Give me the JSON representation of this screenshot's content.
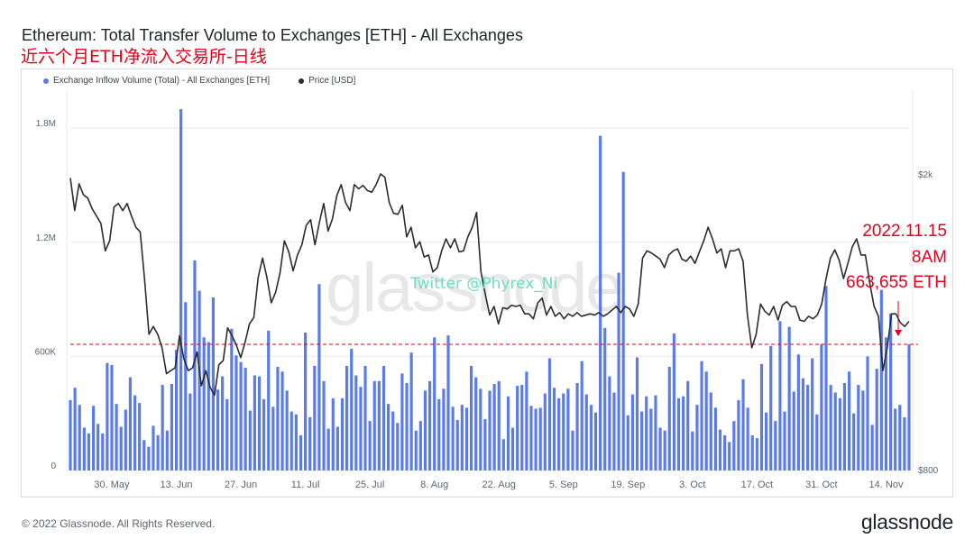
{
  "header": {
    "title": "Ethereum: Total Transfer Volume to Exchanges [ETH] - All Exchanges",
    "subtitle": "近六个月ETH净流入交易所-日线"
  },
  "legend": {
    "inflow": "Exchange Inflow Volume (Total) - All Exchanges [ETH]",
    "price": "Price [USD]"
  },
  "annotation": {
    "date": "2022.11.15",
    "time": "8AM",
    "value": "663,655 ETH"
  },
  "watermark": "glassnode",
  "twitter": "Twitter @Phyrex_Ni",
  "footer": {
    "copyright": "© 2022 Glassnode. All Rights Reserved.",
    "brand": "glassnode"
  },
  "colors": {
    "bars": "#5b7be8",
    "price_line": "#2a2c30",
    "reference_line": "#e3001b",
    "annotation": "#e3001b"
  },
  "chart_data": {
    "type": "bar",
    "title": "Ethereum: Total Transfer Volume to Exchanges [ETH] - All Exchanges",
    "x_ticks": [
      "30. May",
      "13. Jun",
      "27. Jun",
      "11. Jul",
      "25. Jul",
      "8. Aug",
      "22. Aug",
      "5. Sep",
      "19. Sep",
      "3. Oct",
      "17. Oct",
      "31. Oct",
      "14. Nov"
    ],
    "y_left": {
      "ticks": [
        "0",
        "600K",
        "1.2M",
        "1.8M"
      ],
      "tick_values": [
        0,
        600000,
        1200000,
        1800000
      ],
      "range": [
        0,
        2000000
      ]
    },
    "y_right": {
      "ticks": [
        "$800",
        "$2k"
      ],
      "tick_values": [
        800,
        2000
      ],
      "scale": "log",
      "range": [
        800,
        2600
      ]
    },
    "reference_value": 663655,
    "series": [
      {
        "name": "Exchange Inflow Volume (Total) - All Exchanges [ETH]",
        "type": "bar",
        "values": [
          370000,
          435000,
          345000,
          225000,
          195000,
          340000,
          245000,
          195000,
          565000,
          555000,
          350000,
          230000,
          320000,
          490000,
          395000,
          355000,
          160000,
          125000,
          235000,
          185000,
          450000,
          210000,
          455000,
          635000,
          1900000,
          885000,
          405000,
          1105000,
          945000,
          700000,
          675000,
          910000,
          425000,
          495000,
          375000,
          745000,
          605000,
          570000,
          540000,
          315000,
          500000,
          495000,
          375000,
          735000,
          335000,
          545000,
          520000,
          420000,
          310000,
          295000,
          185000,
          725000,
          280000,
          550000,
          980000,
          470000,
          220000,
          380000,
          230000,
          380000,
          550000,
          640000,
          500000,
          440000,
          550000,
          260000,
          470000,
          470000,
          550000,
          350000,
          310000,
          250000,
          510000,
          460000,
          620000,
          210000,
          260000,
          420000,
          470000,
          700000,
          375000,
          430000,
          710000,
          335000,
          265000,
          345000,
          330000,
          550000,
          490000,
          430000,
          270000,
          420000,
          455000,
          470000,
          165000,
          390000,
          225000,
          445000,
          450000,
          520000,
          340000,
          325000,
          330000,
          405000,
          590000,
          435000,
          380000,
          405000,
          430000,
          210000,
          460000,
          575000,
          400000,
          345000,
          305000,
          1760000,
          750000,
          495000,
          410000,
          1040000,
          1570000,
          290000,
          400000,
          595000,
          310000,
          390000,
          325000,
          395000,
          225000,
          210000,
          545000,
          720000,
          380000,
          390000,
          470000,
          205000,
          345000,
          575000,
          520000,
          410000,
          330000,
          215000,
          185000,
          150000,
          260000,
          370000,
          480000,
          330000,
          185000,
          170000,
          560000,
          305000,
          655000,
          260000,
          785000,
          310000,
          755000,
          415000,
          610000,
          485000,
          450000,
          590000,
          295000,
          665000,
          970000,
          450000,
          410000,
          380000,
          460000,
          520000,
          300000,
          450000,
          420000,
          600000,
          240000,
          535000,
          950000,
          700000,
          825000,
          325000,
          345000,
          280000,
          663655
        ]
      },
      {
        "name": "Price [USD]",
        "type": "line",
        "values": [
          1980,
          1790,
          1945,
          1880,
          1860,
          1800,
          1760,
          1720,
          1580,
          1630,
          1810,
          1830,
          1790,
          1830,
          1760,
          1700,
          1675,
          1445,
          1220,
          1250,
          1220,
          1170,
          1080,
          1090,
          1100,
          1215,
          1130,
          1090,
          1100,
          1155,
          1040,
          1090,
          1035,
          1010,
          1110,
          1125,
          1245,
          1215,
          1180,
          1135,
          1190,
          1260,
          1285,
          1455,
          1545,
          1455,
          1345,
          1390,
          1475,
          1630,
          1575,
          1485,
          1560,
          1610,
          1710,
          1740,
          1610,
          1725,
          1830,
          1680,
          1745,
          1875,
          1940,
          1835,
          1790,
          1940,
          1915,
          1935,
          1905,
          1895,
          1940,
          2005,
          1985,
          1835,
          1775,
          1770,
          1820,
          1650,
          1700,
          1595,
          1625,
          1550,
          1560,
          1480,
          1500,
          1580,
          1640,
          1595,
          1640,
          1575,
          1580,
          1650,
          1700,
          1780,
          1480,
          1380,
          1295,
          1330,
          1260,
          1325,
          1320,
          1335,
          1330,
          1335,
          1300,
          1300,
          1280,
          1345,
          1365,
          1295,
          1330,
          1290,
          1305,
          1280,
          1300,
          1290,
          1305,
          1290,
          1295,
          1300,
          1295,
          1305,
          1290,
          1300,
          1315,
          1330,
          1305,
          1330,
          1320,
          1290,
          1340,
          1545,
          1580,
          1570,
          1555,
          1540,
          1500,
          1560,
          1580,
          1590,
          1540,
          1530,
          1555,
          1520,
          1575,
          1630,
          1700,
          1640,
          1570,
          1590,
          1500,
          1580,
          1580,
          1590,
          1530,
          1295,
          1170,
          1220,
          1340,
          1310,
          1295,
          1330,
          1275,
          1335,
          1350,
          1330,
          1330,
          1275,
          1270,
          1290,
          1280,
          1295,
          1340,
          1450,
          1545,
          1585,
          1535,
          1450,
          1520,
          1600,
          1640,
          1560,
          1560,
          1430,
          1330,
          1290,
          1090,
          1170,
          1300,
          1300,
          1265,
          1250,
          1270
        ]
      }
    ],
    "grid": "horizontal",
    "legend_position": "top-left"
  }
}
